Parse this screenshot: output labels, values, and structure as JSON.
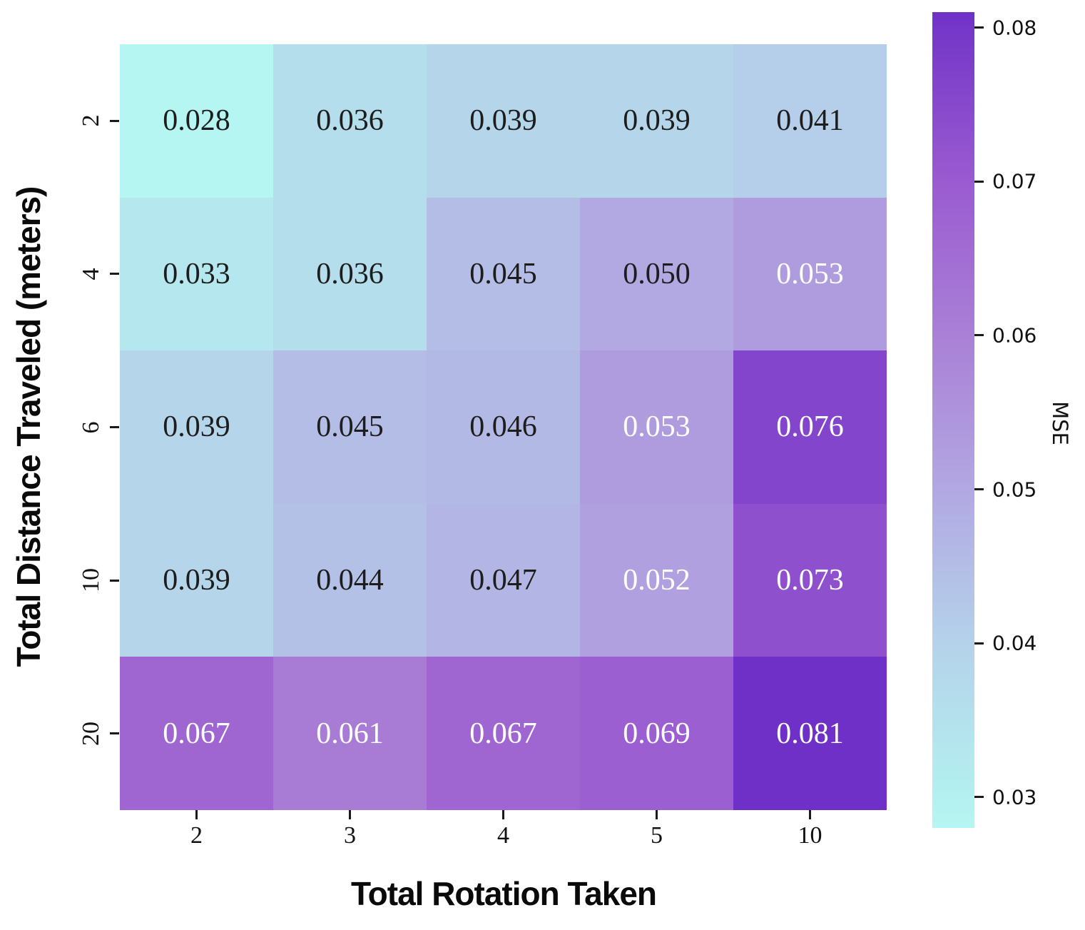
{
  "chart_data": {
    "type": "heatmap",
    "title": "",
    "xlabel": "Total Rotation Taken",
    "ylabel": "Total Distance Traveled (meters)",
    "x_categories": [
      "2",
      "3",
      "4",
      "5",
      "10"
    ],
    "y_categories": [
      "2",
      "4",
      "6",
      "10",
      "20"
    ],
    "values": [
      [
        0.028,
        0.036,
        0.039,
        0.039,
        0.041
      ],
      [
        0.033,
        0.036,
        0.045,
        0.05,
        0.053
      ],
      [
        0.039,
        0.045,
        0.046,
        0.053,
        0.076
      ],
      [
        0.039,
        0.044,
        0.047,
        0.052,
        0.073
      ],
      [
        0.067,
        0.061,
        0.067,
        0.069,
        0.081
      ]
    ],
    "value_decimals": 3,
    "annotations_shown": true,
    "grid": false,
    "colorbar": {
      "label": "MSE",
      "vmin": 0.028,
      "vmax": 0.081,
      "ticks": [
        0.08,
        0.07,
        0.06,
        0.05,
        0.04,
        0.03
      ],
      "tick_decimals": 2,
      "position": "right"
    },
    "colormap_stops": [
      {
        "v": 0.028,
        "c": "#b6f6f2"
      },
      {
        "v": 0.03,
        "c": "#b3f0ef"
      },
      {
        "v": 0.04,
        "c": "#b5d2ea"
      },
      {
        "v": 0.05,
        "c": "#b2a8e2"
      },
      {
        "v": 0.06,
        "c": "#a980d6"
      },
      {
        "v": 0.07,
        "c": "#9a5bd0"
      },
      {
        "v": 0.08,
        "c": "#7437c8"
      },
      {
        "v": 0.081,
        "c": "#6e30c6"
      }
    ],
    "annotation_white_threshold": 0.0515,
    "colors": {
      "annotation_dark": "#1d1d1d",
      "annotation_light": "#ffffff",
      "tick": "#1a1a1a",
      "background": "#ffffff"
    }
  }
}
